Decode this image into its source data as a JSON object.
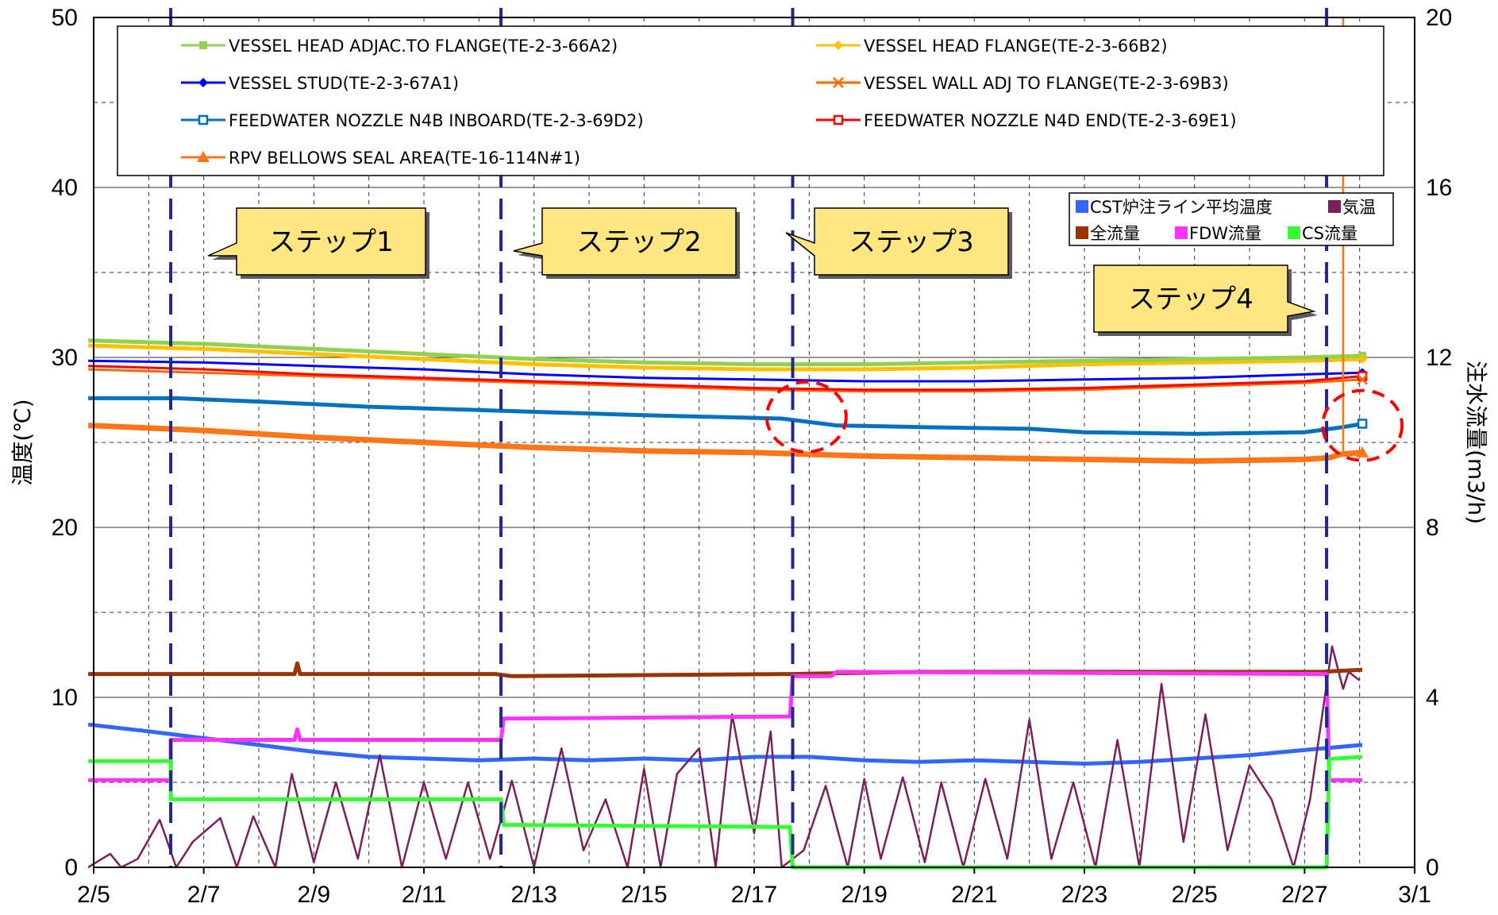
{
  "chart_data": {
    "type": "line",
    "x_axis": {
      "ticks": [
        "2/5",
        "2/7",
        "2/9",
        "2/11",
        "2/13",
        "2/15",
        "2/17",
        "2/19",
        "2/21",
        "2/23",
        "2/25",
        "2/27",
        "3/1"
      ],
      "range": [
        "2/5",
        "3/1"
      ],
      "minor_grid_step_days": 1
    },
    "y_left": {
      "label": "温度(℃)",
      "range": [
        0,
        50
      ],
      "ticks": [
        "0",
        "10",
        "20",
        "30",
        "40",
        "50"
      ]
    },
    "y_right": {
      "label": "注水流量(m3/h)",
      "range": [
        0,
        20
      ],
      "ticks": [
        "0",
        "4",
        "8",
        "12",
        "16",
        "20"
      ]
    },
    "grid": true,
    "legend_top": [
      {
        "name": "VESSEL HEAD ADJAC.TO FLANGE(TE-2-3-66A2)",
        "color": "#92d050",
        "marker": "square"
      },
      {
        "name": "VESSEL HEAD  FLANGE(TE-2-3-66B2)",
        "color": "#ffc000",
        "marker": "diamond"
      },
      {
        "name": "VESSEL STUD(TE-2-3-67A1)",
        "color": "#0000ff",
        "marker": "diamond"
      },
      {
        "name": "VESSEL WALL ADJ TO FLANGE(TE-2-3-69B3)",
        "color": "#ff6600",
        "marker": "x"
      },
      {
        "name": "FEEDWATER NOZZLE N4B INBOARD(TE-2-3-69D2)",
        "color": "#0070c0",
        "marker": "square-open"
      },
      {
        "name": "FEEDWATER NOZZLE N4D END(TE-2-3-69E1)",
        "color": "#ff0000",
        "marker": "square-open"
      },
      {
        "name": "RPV BELLOWS SEAL AREA(TE-16-114N#1)",
        "color": "#ff7518",
        "marker": "triangle"
      }
    ],
    "legend_bottom": [
      {
        "name": "CST炉注ライン平均温度",
        "color": "#3366ff"
      },
      {
        "name": "気温",
        "color": "#7b1f5e"
      },
      {
        "name": "全流量",
        "color": "#993300"
      },
      {
        "name": "FDW流量",
        "color": "#ff33ff"
      },
      {
        "name": "CS流量",
        "color": "#33ff33"
      }
    ],
    "steps": [
      {
        "label": "ステップ1",
        "date": 6.4
      },
      {
        "label": "ステップ2",
        "date": 12.4
      },
      {
        "label": "ステップ3",
        "date": 17.7
      },
      {
        "label": "ステップ4",
        "date": 27.4
      }
    ],
    "series": [
      {
        "name": "VESSEL HEAD ADJAC.TO FLANGE(TE-2-3-66A2)",
        "axis": "left",
        "color": "#92d050",
        "width": 5,
        "x": [
          4.9,
          7,
          9,
          11,
          13,
          15,
          17,
          19,
          21,
          23,
          25,
          27,
          28.05
        ],
        "y": [
          31.0,
          30.8,
          30.5,
          30.2,
          29.9,
          29.7,
          29.6,
          29.6,
          29.7,
          29.8,
          29.9,
          30.0,
          30.1
        ]
      },
      {
        "name": "VESSEL HEAD  FLANGE(TE-2-3-66B2)",
        "axis": "left",
        "color": "#ffc000",
        "width": 5,
        "x": [
          4.9,
          7,
          9,
          11,
          13,
          15,
          17,
          19,
          21,
          23,
          25,
          27,
          28.05
        ],
        "y": [
          30.7,
          30.5,
          30.2,
          29.9,
          29.6,
          29.4,
          29.3,
          29.3,
          29.4,
          29.6,
          29.7,
          29.8,
          29.9
        ]
      },
      {
        "name": "VESSEL STUD(TE-2-3-67A1)",
        "axis": "left",
        "color": "#0000ff",
        "width": 3,
        "x": [
          4.9,
          7,
          9,
          11,
          13,
          15,
          17,
          19,
          21,
          23,
          25,
          27,
          28.05
        ],
        "y": [
          29.8,
          29.7,
          29.5,
          29.3,
          29.0,
          28.8,
          28.7,
          28.6,
          28.6,
          28.7,
          28.8,
          29.0,
          29.1
        ]
      },
      {
        "name": "FEEDWATER NOZZLE N4D END(TE-2-3-69E1)",
        "axis": "left",
        "color": "#ff0000",
        "width": 3,
        "x": [
          4.9,
          7,
          9,
          11,
          13,
          15,
          17,
          19,
          21,
          23,
          25,
          27,
          28.05
        ],
        "y": [
          29.5,
          29.3,
          29.0,
          28.8,
          28.6,
          28.4,
          28.2,
          28.1,
          28.1,
          28.2,
          28.4,
          28.6,
          28.9
        ]
      },
      {
        "name": "VESSEL WALL ADJ TO FLANGE(TE-2-3-69B3)",
        "axis": "left",
        "color": "#ff6600",
        "width": 3,
        "x": [
          4.9,
          7,
          9,
          11,
          13,
          15,
          17,
          19,
          21,
          23,
          25,
          27,
          28.05
        ],
        "y": [
          29.3,
          29.1,
          28.9,
          28.7,
          28.5,
          28.3,
          28.1,
          28.0,
          28.0,
          28.1,
          28.3,
          28.5,
          28.7
        ]
      },
      {
        "name": "FEEDWATER NOZZLE N4B INBOARD(TE-2-3-69D2)",
        "axis": "left",
        "color": "#0070c0",
        "width": 5,
        "x": [
          4.9,
          6.5,
          8,
          10,
          12,
          13,
          15,
          17.5,
          18.5,
          20,
          22,
          23,
          25,
          27,
          27.7,
          28.05
        ],
        "y": [
          27.6,
          27.6,
          27.4,
          27.1,
          26.9,
          26.8,
          26.6,
          26.4,
          26.0,
          25.9,
          25.8,
          25.6,
          25.5,
          25.6,
          25.9,
          26.1
        ]
      },
      {
        "name": "RPV BELLOWS SEAL AREA(TE-16-114N#1)",
        "axis": "left",
        "color": "#ff7518",
        "width": 7,
        "x": [
          4.9,
          7,
          9,
          11,
          13,
          15,
          17,
          19,
          21,
          23,
          25,
          27,
          27.45,
          27.65,
          28.05
        ],
        "y": [
          26.0,
          25.7,
          25.3,
          25.0,
          24.7,
          24.5,
          24.4,
          24.2,
          24.1,
          24.0,
          23.9,
          24.0,
          24.1,
          24.3,
          24.4
        ]
      },
      {
        "name": "全流量",
        "axis": "right",
        "color": "#993300",
        "width": 5,
        "x": [
          4.9,
          8.65,
          8.7,
          8.75,
          12.3,
          12.6,
          17.6,
          17.7,
          20,
          23,
          27.3,
          28.05
        ],
        "y": [
          4.55,
          4.55,
          4.8,
          4.55,
          4.55,
          4.5,
          4.55,
          4.55,
          4.6,
          4.6,
          4.6,
          4.65
        ]
      },
      {
        "name": "FDW流量",
        "axis": "right",
        "color": "#ff33ff",
        "width": 5,
        "x": [
          4.9,
          6.4,
          6.4,
          8.65,
          8.7,
          8.75,
          12.4,
          12.45,
          17.65,
          17.7,
          18.4,
          18.5,
          27.3,
          27.4,
          27.45,
          28.05
        ],
        "y": [
          2.05,
          2.05,
          3.0,
          3.0,
          3.25,
          3.0,
          3.0,
          3.5,
          3.55,
          4.5,
          4.5,
          4.6,
          4.55,
          4.55,
          2.05,
          2.05
        ]
      },
      {
        "name": "CS流量",
        "axis": "right",
        "color": "#33ff33",
        "width": 5,
        "x": [
          4.9,
          6.4,
          6.4,
          12.4,
          12.45,
          17.65,
          17.7,
          27.4,
          27.45,
          28.05
        ],
        "y": [
          2.5,
          2.5,
          1.6,
          1.6,
          1.0,
          0.95,
          0.0,
          0.0,
          2.55,
          2.6
        ]
      },
      {
        "name": "CST炉注ライン平均温度",
        "axis": "left",
        "color": "#3366ff",
        "width": 5,
        "x": [
          4.9,
          6,
          7,
          8,
          9,
          10,
          11,
          12,
          13,
          14,
          15,
          16,
          17,
          18,
          19,
          20,
          21,
          22,
          23,
          24,
          25,
          26,
          27,
          28.05
        ],
        "y": [
          8.4,
          8.0,
          7.6,
          7.2,
          6.8,
          6.5,
          6.4,
          6.3,
          6.4,
          6.3,
          6.4,
          6.3,
          6.5,
          6.5,
          6.3,
          6.2,
          6.3,
          6.2,
          6.1,
          6.2,
          6.4,
          6.6,
          6.9,
          7.2
        ]
      },
      {
        "name": "気温",
        "axis": "left",
        "color": "#7b1f5e",
        "width": 2.5,
        "x": [
          4.9,
          5.3,
          5.5,
          5.8,
          6.2,
          6.5,
          6.8,
          7.3,
          7.6,
          7.9,
          8.3,
          8.6,
          9.0,
          9.4,
          9.8,
          10.2,
          10.6,
          11.0,
          11.4,
          11.8,
          12.2,
          12.6,
          13.0,
          13.5,
          13.9,
          14.3,
          14.7,
          15.0,
          15.3,
          15.6,
          16.0,
          16.3,
          16.6,
          17.0,
          17.3,
          17.5,
          17.9,
          18.3,
          18.7,
          19.0,
          19.3,
          19.7,
          20.1,
          20.4,
          20.8,
          21.2,
          21.6,
          22.0,
          22.4,
          22.8,
          23.2,
          23.6,
          24.0,
          24.4,
          24.8,
          25.2,
          25.6,
          26.0,
          26.4,
          26.8,
          27.1,
          27.5,
          27.7,
          27.8,
          28.0
        ],
        "y": [
          0.0,
          0.8,
          0.0,
          0.5,
          2.8,
          0.0,
          1.5,
          2.9,
          0.0,
          3.0,
          0.0,
          5.5,
          0.3,
          5.0,
          0.5,
          6.6,
          0.0,
          5.0,
          0.5,
          5.0,
          0.5,
          5.1,
          0.0,
          7.0,
          1.0,
          4.0,
          0.0,
          5.8,
          0.0,
          5.5,
          7.0,
          0.0,
          9.0,
          2.0,
          8.0,
          0.0,
          1.0,
          4.8,
          0.0,
          5.2,
          0.5,
          5.3,
          0.3,
          5.0,
          0.0,
          5.2,
          0.5,
          8.7,
          0.5,
          5.0,
          0.0,
          7.5,
          0.0,
          10.8,
          1.5,
          9.0,
          1.0,
          6.0,
          4.0,
          0.0,
          4.0,
          13.0,
          10.5,
          11.5,
          11.0
        ]
      }
    ],
    "annotations": [
      {
        "type": "dashed-ellipse",
        "color": "#ff0000",
        "cx_date": 17.95,
        "cy": 26.5
      },
      {
        "type": "dashed-ellipse",
        "color": "#ff0000",
        "cx_date": 28.05,
        "cy": 26.0
      }
    ]
  }
}
